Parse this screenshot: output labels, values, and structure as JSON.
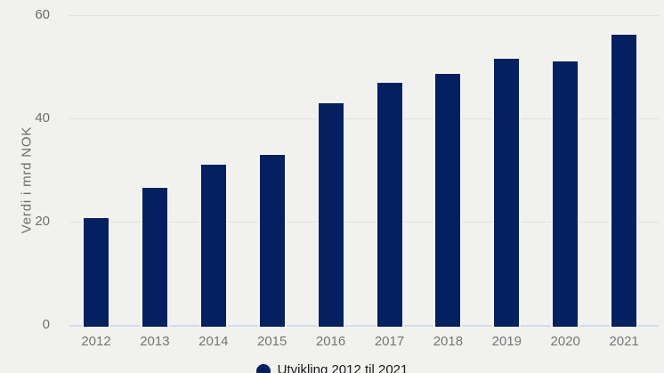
{
  "chart_data": {
    "type": "bar",
    "categories": [
      "2012",
      "2013",
      "2014",
      "2015",
      "2016",
      "2017",
      "2018",
      "2019",
      "2020",
      "2021"
    ],
    "values": [
      21.0,
      26.9,
      31.4,
      33.3,
      43.2,
      47.3,
      48.9,
      51.9,
      51.4,
      56.6
    ],
    "title": "",
    "xlabel": "",
    "ylabel": "Verdi i mrd NOK",
    "ylim": [
      0,
      60
    ],
    "yticks": [
      0,
      20,
      40,
      60
    ],
    "grid": true,
    "legend": {
      "position": "bottom",
      "entries": [
        {
          "label": "Utvikling 2012 til 2021",
          "color": "#052060"
        }
      ]
    }
  },
  "colors": {
    "background": "#f1f1ef",
    "bar": "#052060",
    "bar_outline": "#f4f4f2",
    "gridline": "#e2e2e0",
    "axis_line": "#d6dbec",
    "tick_text": "#6e6e6e",
    "xlabel_text": "#757575",
    "legend_text": "#1a1a1a"
  }
}
